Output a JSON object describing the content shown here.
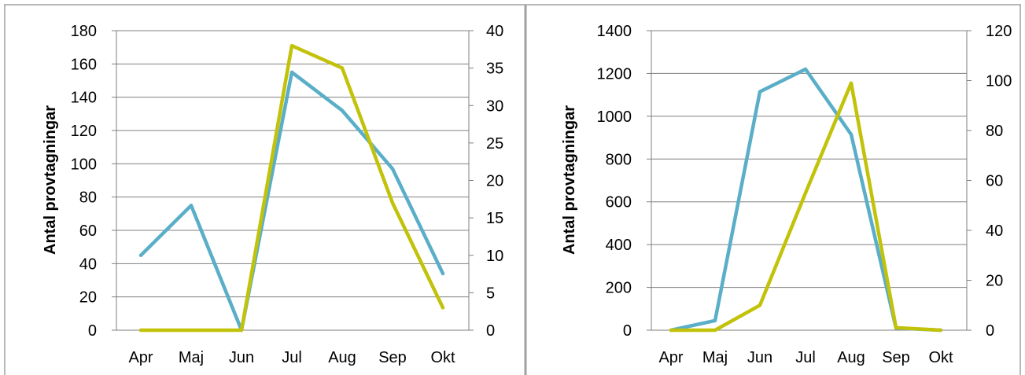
{
  "colors": {
    "primary_series": "#5AAEC8",
    "secondary_series": "#C2C20A",
    "grid": "#7F7F7F",
    "frame": "#A0A0A0"
  },
  "chart_data": [
    {
      "type": "line",
      "categories": [
        "Apr",
        "Maj",
        "Jun",
        "Jul",
        "Aug",
        "Sep",
        "Okt"
      ],
      "ylabel": "Antal provtagningar",
      "ylim": [
        0,
        180
      ],
      "yticks": [
        0,
        20,
        40,
        60,
        80,
        100,
        120,
        140,
        160,
        180
      ],
      "y2lim": [
        0,
        40
      ],
      "y2ticks": [
        0,
        5,
        10,
        15,
        20,
        25,
        30,
        35,
        40
      ],
      "grid": true,
      "legend": "none",
      "series": [
        {
          "axis": "left",
          "color": "#5AAEC8",
          "values": [
            45,
            75,
            0,
            155,
            132,
            97,
            34
          ]
        },
        {
          "axis": "right",
          "color": "#C2C20A",
          "values": [
            0,
            0,
            0,
            38,
            35,
            17,
            3
          ]
        }
      ]
    },
    {
      "type": "line",
      "categories": [
        "Apr",
        "Maj",
        "Jun",
        "Jul",
        "Aug",
        "Sep",
        "Okt"
      ],
      "ylabel": "Antal provtagningar",
      "ylim": [
        0,
        1400
      ],
      "yticks": [
        0,
        200,
        400,
        600,
        800,
        1000,
        1200,
        1400
      ],
      "y2lim": [
        0,
        120
      ],
      "y2ticks": [
        0,
        20,
        40,
        60,
        80,
        100,
        120
      ],
      "grid": true,
      "legend": "none",
      "series": [
        {
          "axis": "left",
          "color": "#5AAEC8",
          "values": [
            0,
            45,
            1115,
            1220,
            915,
            10,
            0
          ]
        },
        {
          "axis": "right",
          "color": "#C2C20A",
          "values": [
            0,
            0,
            10,
            55,
            99,
            1,
            0
          ]
        }
      ]
    }
  ]
}
